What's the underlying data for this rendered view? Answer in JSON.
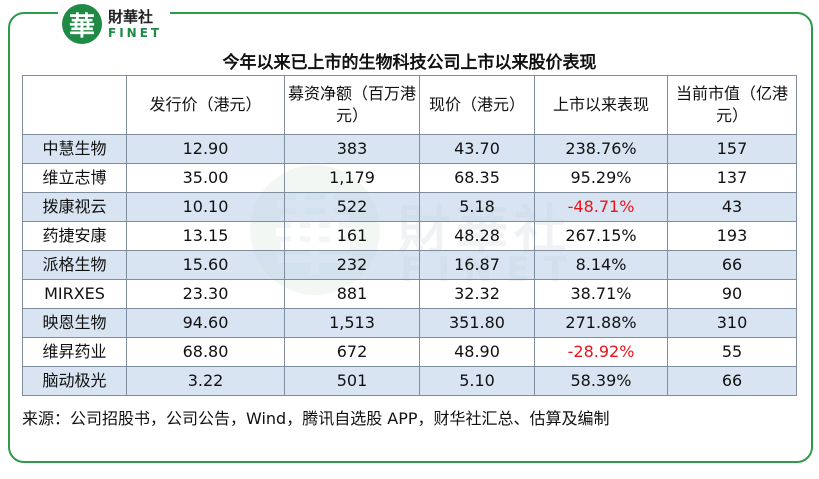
{
  "brand": {
    "logo_char": "華",
    "name_cn": "財華社",
    "name_en": "FINET",
    "colors": {
      "accent": "#2e9a4a",
      "negative": "#e8141d",
      "row_shade": "#cfdeee"
    }
  },
  "title": "今年以来已上市的生物科技公司上市以来股价表现",
  "table": {
    "headers": [
      "",
      "发行价（港元）",
      "募资净额（百万港元）",
      "现价（港元）",
      "上市以来表现",
      "当前市值（亿港元）"
    ],
    "rows": [
      {
        "company": "中慧生物",
        "issue_price": "12.90",
        "net_proceeds": "383",
        "current_price": "43.70",
        "performance": "238.76%",
        "market_cap": "157"
      },
      {
        "company": "维立志博",
        "issue_price": "35.00",
        "net_proceeds": "1,179",
        "current_price": "68.35",
        "performance": "95.29%",
        "market_cap": "137"
      },
      {
        "company": "拨康视云",
        "issue_price": "10.10",
        "net_proceeds": "522",
        "current_price": "5.18",
        "performance": "-48.71%",
        "market_cap": "43"
      },
      {
        "company": "药捷安康",
        "issue_price": "13.15",
        "net_proceeds": "161",
        "current_price": "48.28",
        "performance": "267.15%",
        "market_cap": "193"
      },
      {
        "company": "派格生物",
        "issue_price": "15.60",
        "net_proceeds": "232",
        "current_price": "16.87",
        "performance": "8.14%",
        "market_cap": "66"
      },
      {
        "company": "MIRXES",
        "issue_price": "23.30",
        "net_proceeds": "881",
        "current_price": "32.32",
        "performance": "38.71%",
        "market_cap": "90"
      },
      {
        "company": "映恩生物",
        "issue_price": "94.60",
        "net_proceeds": "1,513",
        "current_price": "351.80",
        "performance": "271.88%",
        "market_cap": "310"
      },
      {
        "company": "维昇药业",
        "issue_price": "68.80",
        "net_proceeds": "672",
        "current_price": "48.90",
        "performance": "-28.92%",
        "market_cap": "55"
      },
      {
        "company": "脑动极光",
        "issue_price": "3.22",
        "net_proceeds": "501",
        "current_price": "5.10",
        "performance": "58.39%",
        "market_cap": "66"
      }
    ]
  },
  "source": "来源：公司招股书，公司公告，Wind，腾讯自选股 APP，财华社汇总、估算及编制"
}
